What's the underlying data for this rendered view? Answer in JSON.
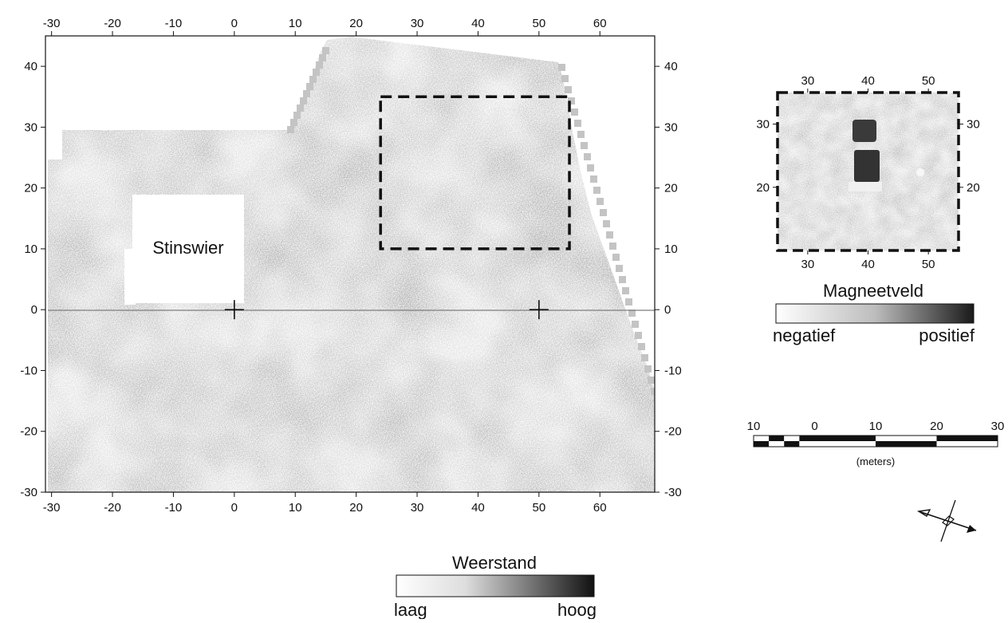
{
  "main_map": {
    "x_ticks": [
      "-30",
      "-20",
      "-10",
      "0",
      "10",
      "20",
      "30",
      "40",
      "50",
      "60"
    ],
    "y_ticks": [
      "40",
      "30",
      "20",
      "10",
      "0",
      "-10",
      "-20",
      "-30"
    ],
    "x_range": [
      -31,
      69
    ],
    "y_range": [
      -30,
      45
    ],
    "feature_label": "Stinswier",
    "magnetic_survey_box": {
      "x": [
        24,
        55
      ],
      "y": [
        10,
        35
      ]
    },
    "grid_markers": [
      {
        "x": 0,
        "y": 0
      },
      {
        "x": 50,
        "y": 0
      }
    ],
    "shading_color": "#4a4a4a"
  },
  "inset_map": {
    "x_ticks": [
      "30",
      "40",
      "50"
    ],
    "y_ticks": [
      "30",
      "20"
    ],
    "x_range": [
      25,
      55
    ],
    "y_range": [
      10,
      35
    ]
  },
  "magneetveld_legend": {
    "title": "Magneetveld",
    "low_label": "negatief",
    "high_label": "positief",
    "gradient": [
      "#ffffff",
      "#1a1a1a"
    ]
  },
  "weerstand_legend": {
    "title": "Weerstand",
    "low_label": "laag",
    "high_label": "hoog",
    "gradient": [
      "#ffffff",
      "#111111"
    ]
  },
  "scale_bar": {
    "tick_labels": [
      "10",
      "0",
      "10",
      "20",
      "30"
    ],
    "unit_label": "(meters)"
  },
  "north_arrow": {
    "icon": "north-arrow-icon"
  }
}
